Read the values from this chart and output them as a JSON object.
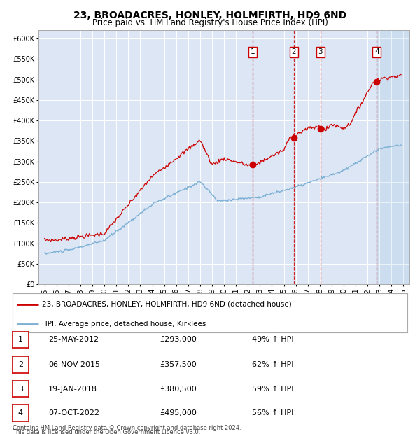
{
  "title": "23, BROADACRES, HONLEY, HOLMFIRTH, HD9 6ND",
  "subtitle": "Price paid vs. HM Land Registry's House Price Index (HPI)",
  "title_fontsize": 10,
  "subtitle_fontsize": 8.5,
  "background_color": "#ffffff",
  "plot_bg_color": "#dce6f5",
  "grid_color": "#ffffff",
  "hpi_line_color": "#7bafd4",
  "price_line_color": "#cc0000",
  "sale_marker_color": "#cc0000",
  "vline_color": "#cc0000",
  "xlim": [
    1994.5,
    2025.5
  ],
  "ylim": [
    0,
    620000
  ],
  "yticks": [
    0,
    50000,
    100000,
    150000,
    200000,
    250000,
    300000,
    350000,
    400000,
    450000,
    500000,
    550000,
    600000
  ],
  "sales": [
    {
      "num": 1,
      "date_label": "25-MAY-2012",
      "price": 293000,
      "year": 2012.39,
      "pct": "49% ↑ HPI"
    },
    {
      "num": 2,
      "date_label": "06-NOV-2015",
      "price": 357500,
      "year": 2015.84,
      "pct": "62% ↑ HPI"
    },
    {
      "num": 3,
      "date_label": "19-JAN-2018",
      "price": 380500,
      "year": 2018.05,
      "pct": "59% ↑ HPI"
    },
    {
      "num": 4,
      "date_label": "07-OCT-2022",
      "price": 495000,
      "year": 2022.77,
      "pct": "56% ↑ HPI"
    }
  ],
  "legend_line1": "23, BROADACRES, HONLEY, HOLMFIRTH, HD9 6ND (detached house)",
  "legend_line2": "HPI: Average price, detached house, Kirklees",
  "footer1": "Contains HM Land Registry data © Crown copyright and database right 2024.",
  "footer2": "This data is licensed under the Open Government Licence v3.0.",
  "xtick_years": [
    1995,
    1996,
    1997,
    1998,
    1999,
    2000,
    2001,
    2002,
    2003,
    2004,
    2005,
    2006,
    2007,
    2008,
    2009,
    2010,
    2011,
    2012,
    2013,
    2014,
    2015,
    2016,
    2017,
    2018,
    2019,
    2020,
    2021,
    2022,
    2023,
    2024,
    2025
  ]
}
